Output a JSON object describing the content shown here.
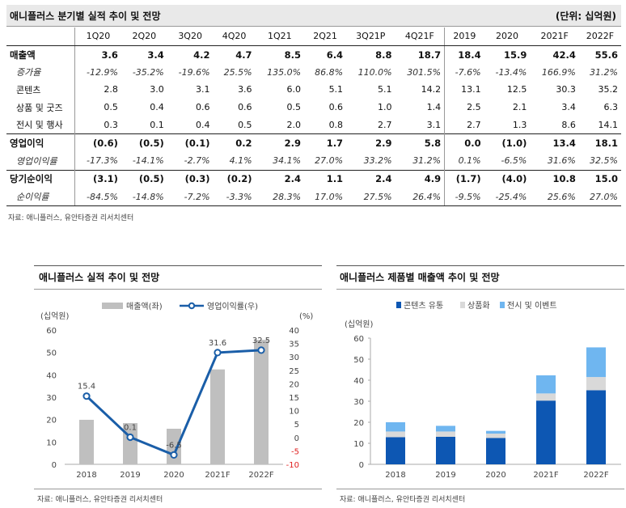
{
  "table": {
    "title": "애니플러스 분기별 실적 추이 및 전망",
    "unit": "(단위: 십억원)",
    "headers": [
      "",
      "1Q20",
      "2Q20",
      "3Q20",
      "4Q20",
      "1Q21",
      "2Q21",
      "3Q21P",
      "4Q21F",
      "2019",
      "2020",
      "2021F",
      "2022F"
    ],
    "rows": [
      {
        "label": "매출액",
        "style": "bold topline",
        "values": [
          "3.6",
          "3.4",
          "4.2",
          "4.7",
          "8.5",
          "6.4",
          "8.8",
          "18.7",
          "18.4",
          "15.9",
          "42.4",
          "55.6"
        ]
      },
      {
        "label": "증가율",
        "style": "ital",
        "values": [
          "-12.9%",
          "-35.2%",
          "-19.6%",
          "25.5%",
          "135.0%",
          "86.8%",
          "110.0%",
          "301.5%",
          "-7.6%",
          "-13.4%",
          "166.9%",
          "31.2%"
        ]
      },
      {
        "label": "콘텐츠",
        "style": "sub",
        "values": [
          "2.8",
          "3.0",
          "3.1",
          "3.6",
          "6.0",
          "5.1",
          "5.1",
          "14.2",
          "13.1",
          "12.5",
          "30.3",
          "35.2"
        ]
      },
      {
        "label": "상품 및 굿즈",
        "style": "sub",
        "values": [
          "0.5",
          "0.4",
          "0.6",
          "0.6",
          "0.5",
          "0.6",
          "1.0",
          "1.4",
          "2.5",
          "2.1",
          "3.4",
          "6.3"
        ]
      },
      {
        "label": "전시 및 행사",
        "style": "sub",
        "values": [
          "0.3",
          "0.1",
          "0.4",
          "0.5",
          "2.0",
          "0.8",
          "2.7",
          "3.1",
          "2.7",
          "1.3",
          "8.6",
          "14.1"
        ]
      },
      {
        "label": "영업이익",
        "style": "bold topline",
        "values": [
          "(0.6)",
          "(0.5)",
          "(0.1)",
          "0.2",
          "2.9",
          "1.7",
          "2.9",
          "5.8",
          "0.0",
          "(1.0)",
          "13.4",
          "18.1"
        ]
      },
      {
        "label": "영업이익률",
        "style": "ital",
        "values": [
          "-17.3%",
          "-14.1%",
          "-2.7%",
          "4.1%",
          "34.1%",
          "27.0%",
          "33.2%",
          "31.2%",
          "0.1%",
          "-6.5%",
          "31.6%",
          "32.5%"
        ]
      },
      {
        "label": "당기순이익",
        "style": "bold topline",
        "values": [
          "(3.1)",
          "(0.5)",
          "(0.3)",
          "(0.2)",
          "2.4",
          "1.1",
          "2.4",
          "4.9",
          "(1.7)",
          "(4.0)",
          "10.8",
          "15.0"
        ]
      },
      {
        "label": "순이익률",
        "style": "ital last",
        "values": [
          "-84.5%",
          "-14.8%",
          "-7.2%",
          "-3.3%",
          "28.3%",
          "17.0%",
          "27.5%",
          "26.4%",
          "-9.5%",
          "-25.4%",
          "25.6%",
          "27.0%"
        ]
      }
    ],
    "source": "자료: 애니플러스, 유안타증권 리서치센터"
  },
  "chart_data": [
    {
      "type": "bar",
      "title": "애니플러스 실적 추이 및 전망",
      "categories": [
        "2018",
        "2019",
        "2020",
        "2021F",
        "2022F"
      ],
      "left_axis_label": "(십억원)",
      "right_axis_label": "(%)",
      "left_ylim": [
        0,
        60
      ],
      "left_ticks": [
        "0",
        "10",
        "20",
        "30",
        "40",
        "50",
        "60"
      ],
      "right_ylim": [
        -10,
        40
      ],
      "right_ticks": [
        "-10",
        "-5",
        "0",
        "5",
        "10",
        "15",
        "20",
        "25",
        "30",
        "35",
        "40"
      ],
      "series": [
        {
          "name": "매출액(좌)",
          "kind": "bar",
          "axis": "left",
          "color": "#bfbfbf",
          "values": [
            19.9,
            18.4,
            15.9,
            42.4,
            55.6
          ]
        },
        {
          "name": "영업이익률(우)",
          "kind": "line",
          "axis": "right",
          "color": "#1a5ea8",
          "values": [
            15.4,
            0.1,
            -6.5,
            31.6,
            32.5
          ],
          "labels": [
            "15.4",
            "0.1",
            "-6.5",
            "31.6",
            "32.5"
          ]
        }
      ],
      "legend_position": "top",
      "source": "자료: 애니플러스, 유안타증권 리서치센터"
    },
    {
      "type": "bar",
      "stacked": true,
      "title": "애니플러스 제품별 매출액 추이 및 전망",
      "categories": [
        "2018",
        "2019",
        "2020",
        "2021F",
        "2022F"
      ],
      "left_axis_label": "(십억원)",
      "ylim": [
        0,
        60
      ],
      "ticks": [
        "0",
        "10",
        "20",
        "30",
        "40",
        "50",
        "60"
      ],
      "series": [
        {
          "name": "콘텐츠 유통",
          "color": "#0d57b3",
          "values": [
            12.9,
            13.1,
            12.5,
            30.3,
            35.2
          ]
        },
        {
          "name": "상품화",
          "color": "#d9d9d9",
          "values": [
            2.7,
            2.5,
            2.1,
            3.4,
            6.3
          ]
        },
        {
          "name": "전시 및 이벤트",
          "color": "#6fb6f0",
          "values": [
            4.4,
            2.7,
            1.3,
            8.6,
            14.1
          ]
        }
      ],
      "legend_position": "top",
      "source": "자료: 애니플러스, 유안타증권 리서치센터"
    }
  ]
}
